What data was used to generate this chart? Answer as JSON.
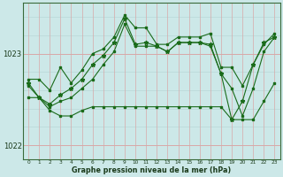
{
  "bg_color": "#cce8e8",
  "line_color": "#1a6b1a",
  "xlabel": "Graphe pression niveau de la mer (hPa)",
  "ylim": [
    1021.85,
    1023.55
  ],
  "xlim": [
    -0.5,
    23.5
  ],
  "yticks": [
    1022,
    1023
  ],
  "xticks": [
    0,
    1,
    2,
    3,
    4,
    5,
    6,
    7,
    8,
    9,
    10,
    11,
    12,
    13,
    14,
    15,
    16,
    17,
    18,
    19,
    20,
    21,
    22,
    23
  ],
  "series": {
    "max": [
      1022.72,
      1022.72,
      1022.6,
      1022.85,
      1022.68,
      1022.82,
      1023.0,
      1023.05,
      1023.18,
      1023.42,
      1023.28,
      1023.28,
      1023.1,
      1023.1,
      1023.18,
      1023.18,
      1023.18,
      1023.22,
      1022.85,
      1022.85,
      1022.65,
      1022.88,
      1023.1,
      1023.22
    ],
    "min": [
      1022.52,
      1022.52,
      1022.38,
      1022.32,
      1022.32,
      1022.38,
      1022.42,
      1022.42,
      1022.42,
      1022.42,
      1022.42,
      1022.42,
      1022.42,
      1022.42,
      1022.42,
      1022.42,
      1022.42,
      1022.42,
      1022.42,
      1022.28,
      1022.28,
      1022.28,
      1022.48,
      1022.68
    ],
    "avg": [
      1022.65,
      1022.52,
      1022.42,
      1022.48,
      1022.52,
      1022.62,
      1022.72,
      1022.88,
      1023.02,
      1023.32,
      1023.08,
      1023.08,
      1023.08,
      1023.02,
      1023.12,
      1023.12,
      1023.12,
      1023.08,
      1022.78,
      1022.62,
      1022.32,
      1022.62,
      1023.02,
      1023.18
    ],
    "instant": [
      1022.68,
      1022.52,
      1022.45,
      1022.55,
      1022.62,
      1022.72,
      1022.88,
      1022.98,
      1023.12,
      1023.38,
      1023.1,
      1023.12,
      1023.08,
      1023.02,
      1023.12,
      1023.12,
      1023.12,
      1023.1,
      1022.78,
      1022.28,
      1022.48,
      1022.88,
      1023.12,
      1023.18
    ]
  },
  "vgrid_colors": [
    "#d8a8a8",
    "#b8d8d8"
  ],
  "hgrid_major_color": "#d8a8a8",
  "hgrid_minor_color": "#b8d8d8",
  "hgrid_minor_vals": [
    1022.2,
    1022.4,
    1022.6,
    1022.8,
    1023.0,
    1023.2,
    1023.4
  ]
}
